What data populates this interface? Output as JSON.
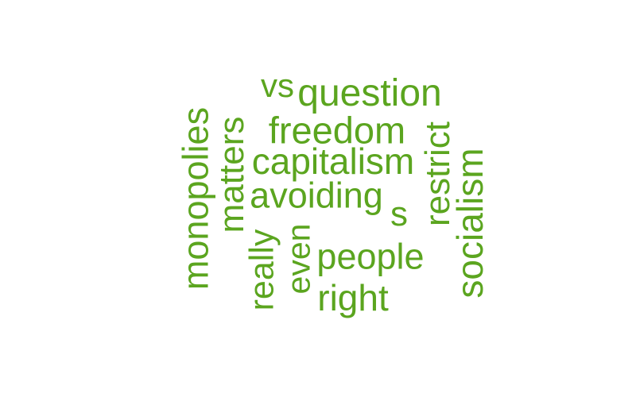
{
  "word_color": "#5ba51f",
  "words": {
    "monopolies": "monopolies",
    "matters": "matters",
    "vs": "vs",
    "question": "question",
    "freedom": "freedom",
    "capitalism": "capitalism",
    "avoiding": "avoiding",
    "s": "s",
    "restrict": "restrict",
    "socialism": "socialism",
    "really": "really",
    "even": "even",
    "people": "people",
    "right": "right"
  }
}
